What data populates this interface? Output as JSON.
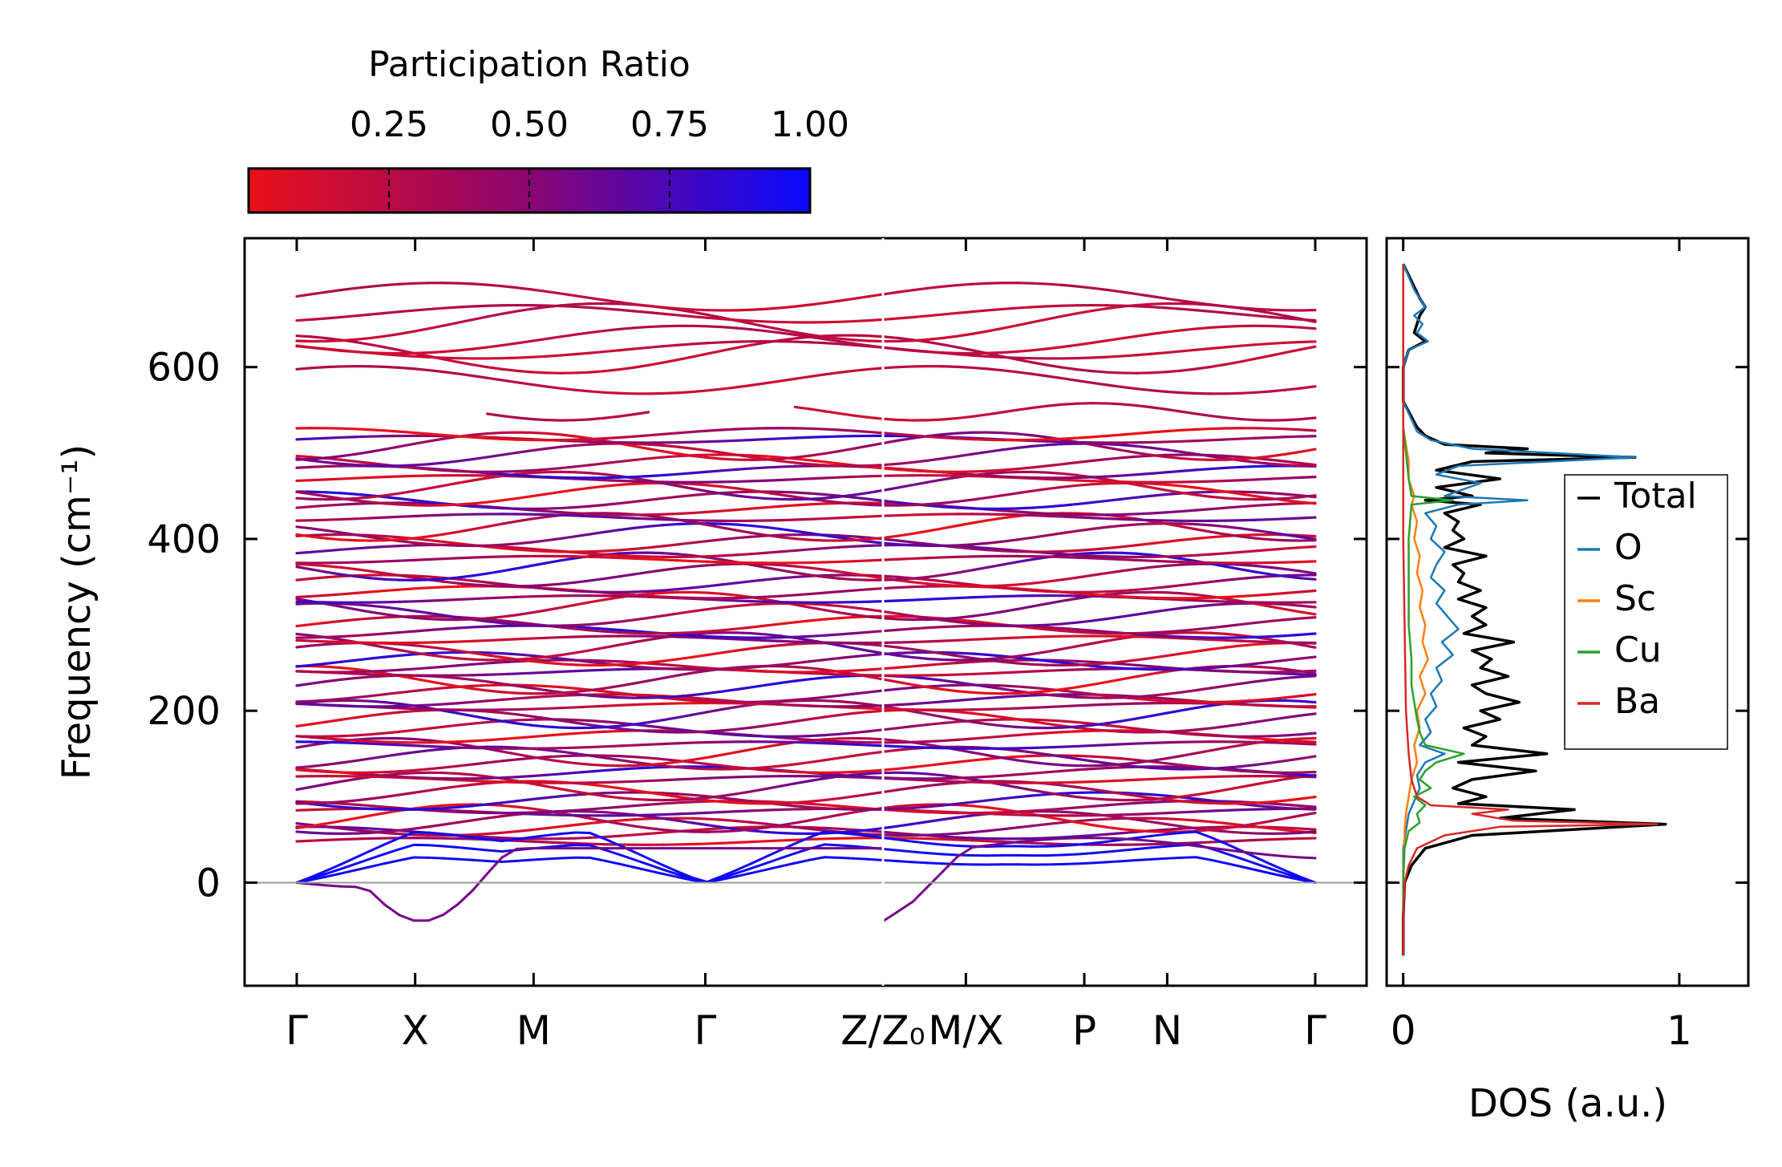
{
  "chart_data": [
    {
      "type": "line",
      "title": "",
      "ylabel": "Frequency (cm⁻¹)",
      "ylim": [
        -120,
        750
      ],
      "yticks": [
        0,
        200,
        400,
        600
      ],
      "ytick_labels": [
        "0",
        "200",
        "400",
        "600"
      ],
      "path_labels": [
        "Γ",
        "X",
        "M",
        "Γ",
        "Z/Z₀",
        "M/X",
        "P",
        "N",
        "Γ"
      ],
      "path_positions": [
        0,
        1,
        2,
        3.45,
        4.95,
        5.65,
        6.65,
        7.35,
        8.6
      ],
      "segment_break_after": "Z/Z₀",
      "colorbar": {
        "label": "Participation Ratio",
        "min": 0.0,
        "max": 1.0,
        "ticks": [
          0.25,
          0.5,
          0.75,
          1.0
        ],
        "tick_labels": [
          "0.25",
          "0.50",
          "0.75",
          "1.00"
        ],
        "color_low": "#e8101a",
        "color_mid": "#8a0670",
        "color_high": "#0808ff"
      },
      "flat_band_frequencies": [
        48,
        58,
        65,
        70,
        75,
        82,
        88,
        95,
        105,
        112,
        120,
        128,
        138,
        145,
        152,
        160,
        170,
        180,
        188,
        196,
        205,
        212,
        220,
        228,
        236,
        245,
        252,
        258,
        266,
        275,
        283,
        292,
        300,
        312,
        322,
        330,
        338,
        348,
        358,
        368,
        376,
        386,
        395,
        405,
        414,
        425,
        435,
        445,
        452,
        462,
        470,
        478,
        488,
        498,
        508,
        516,
        522
      ],
      "high_band_frequencies": [
        548,
        585,
        615,
        620,
        632,
        652,
        662,
        682
      ],
      "acoustic_max": 60,
      "imaginary_mode_min": -45,
      "imaginary_mode_plateau": 40
    },
    {
      "type": "line",
      "xlabel": "DOS (a.u.)",
      "xlim": [
        -0.06,
        1.25
      ],
      "xticks": [
        0,
        1
      ],
      "xtick_labels": [
        "0",
        "1"
      ],
      "ylim": [
        -120,
        750
      ],
      "legend": {
        "placement": "center-right",
        "entries": [
          {
            "name": "Total",
            "color": "#000000"
          },
          {
            "name": "O",
            "color": "#1f77b4"
          },
          {
            "name": "Sc",
            "color": "#ff7f0e"
          },
          {
            "name": "Cu",
            "color": "#2ca02c"
          },
          {
            "name": "Ba",
            "color": "#d62728"
          }
        ]
      },
      "series": [
        {
          "name": "Total",
          "freq": [
            -85,
            -40,
            0,
            20,
            40,
            55,
            68,
            75,
            85,
            92,
            100,
            110,
            120,
            130,
            140,
            150,
            160,
            170,
            180,
            190,
            200,
            210,
            220,
            230,
            240,
            250,
            260,
            270,
            280,
            290,
            300,
            310,
            320,
            330,
            340,
            350,
            360,
            370,
            380,
            390,
            400,
            410,
            420,
            430,
            440,
            445,
            450,
            460,
            470,
            480,
            490,
            495,
            500,
            505,
            510,
            520,
            530,
            560,
            600,
            620,
            630,
            640,
            660,
            670,
            680,
            720
          ],
          "values": [
            0.0,
            0.0,
            0.005,
            0.03,
            0.08,
            0.25,
            0.95,
            0.35,
            0.62,
            0.2,
            0.3,
            0.18,
            0.25,
            0.48,
            0.2,
            0.52,
            0.25,
            0.3,
            0.22,
            0.35,
            0.28,
            0.42,
            0.3,
            0.25,
            0.38,
            0.28,
            0.32,
            0.25,
            0.4,
            0.22,
            0.3,
            0.25,
            0.3,
            0.2,
            0.28,
            0.2,
            0.22,
            0.18,
            0.3,
            0.15,
            0.22,
            0.18,
            0.2,
            0.15,
            0.28,
            0.08,
            0.25,
            0.12,
            0.35,
            0.12,
            0.25,
            0.84,
            0.3,
            0.45,
            0.15,
            0.08,
            0.05,
            0.0,
            0.0,
            0.02,
            0.08,
            0.04,
            0.06,
            0.08,
            0.06,
            0.0
          ]
        },
        {
          "name": "O",
          "freq": [
            -85,
            0,
            40,
            60,
            80,
            95,
            110,
            125,
            140,
            150,
            160,
            175,
            190,
            205,
            220,
            235,
            250,
            265,
            280,
            295,
            310,
            325,
            340,
            355,
            370,
            385,
            400,
            415,
            430,
            440,
            445,
            450,
            465,
            475,
            485,
            495,
            505,
            515,
            525,
            560,
            600,
            620,
            630,
            640,
            650,
            660,
            670,
            680,
            690,
            720
          ],
          "values": [
            0.0,
            0.0,
            0.0,
            0.01,
            0.02,
            0.04,
            0.06,
            0.05,
            0.08,
            0.15,
            0.06,
            0.1,
            0.08,
            0.12,
            0.1,
            0.14,
            0.12,
            0.18,
            0.14,
            0.2,
            0.16,
            0.12,
            0.15,
            0.1,
            0.12,
            0.15,
            0.1,
            0.12,
            0.08,
            0.2,
            0.45,
            0.15,
            0.28,
            0.12,
            0.2,
            0.84,
            0.25,
            0.1,
            0.05,
            0.0,
            0.0,
            0.02,
            0.09,
            0.05,
            0.07,
            0.04,
            0.08,
            0.06,
            0.04,
            0.0
          ]
        },
        {
          "name": "Sc",
          "freq": [
            -85,
            0,
            60,
            80,
            100,
            120,
            140,
            160,
            180,
            200,
            220,
            240,
            260,
            280,
            300,
            320,
            340,
            360,
            380,
            400,
            420,
            440,
            450,
            470,
            490,
            510,
            530,
            720
          ],
          "values": [
            0.0,
            0.0,
            0.005,
            0.01,
            0.02,
            0.03,
            0.05,
            0.04,
            0.06,
            0.05,
            0.08,
            0.06,
            0.09,
            0.07,
            0.08,
            0.06,
            0.07,
            0.05,
            0.06,
            0.04,
            0.05,
            0.03,
            0.04,
            0.02,
            0.02,
            0.01,
            0.0,
            0.0
          ]
        },
        {
          "name": "Cu",
          "freq": [
            -85,
            0,
            40,
            60,
            70,
            80,
            90,
            100,
            110,
            120,
            130,
            140,
            150,
            160,
            175,
            190,
            210,
            230,
            260,
            300,
            350,
            400,
            440,
            445,
            450,
            470,
            500,
            530,
            720
          ],
          "values": [
            0.0,
            0.0,
            0.005,
            0.02,
            0.06,
            0.05,
            0.08,
            0.04,
            0.1,
            0.06,
            0.08,
            0.12,
            0.22,
            0.08,
            0.06,
            0.05,
            0.04,
            0.03,
            0.03,
            0.02,
            0.02,
            0.02,
            0.03,
            0.18,
            0.03,
            0.02,
            0.01,
            0.0,
            0.0
          ]
        },
        {
          "name": "Ba",
          "freq": [
            -85,
            -40,
            0,
            20,
            40,
            55,
            65,
            68,
            72,
            80,
            85,
            90,
            100,
            120,
            150,
            200,
            300,
            400,
            500,
            720
          ],
          "values": [
            0.0,
            0.0,
            0.005,
            0.02,
            0.05,
            0.15,
            0.35,
            0.92,
            0.4,
            0.25,
            0.38,
            0.1,
            0.05,
            0.03,
            0.02,
            0.01,
            0.005,
            0.0,
            0.0,
            0.0
          ]
        }
      ]
    }
  ]
}
